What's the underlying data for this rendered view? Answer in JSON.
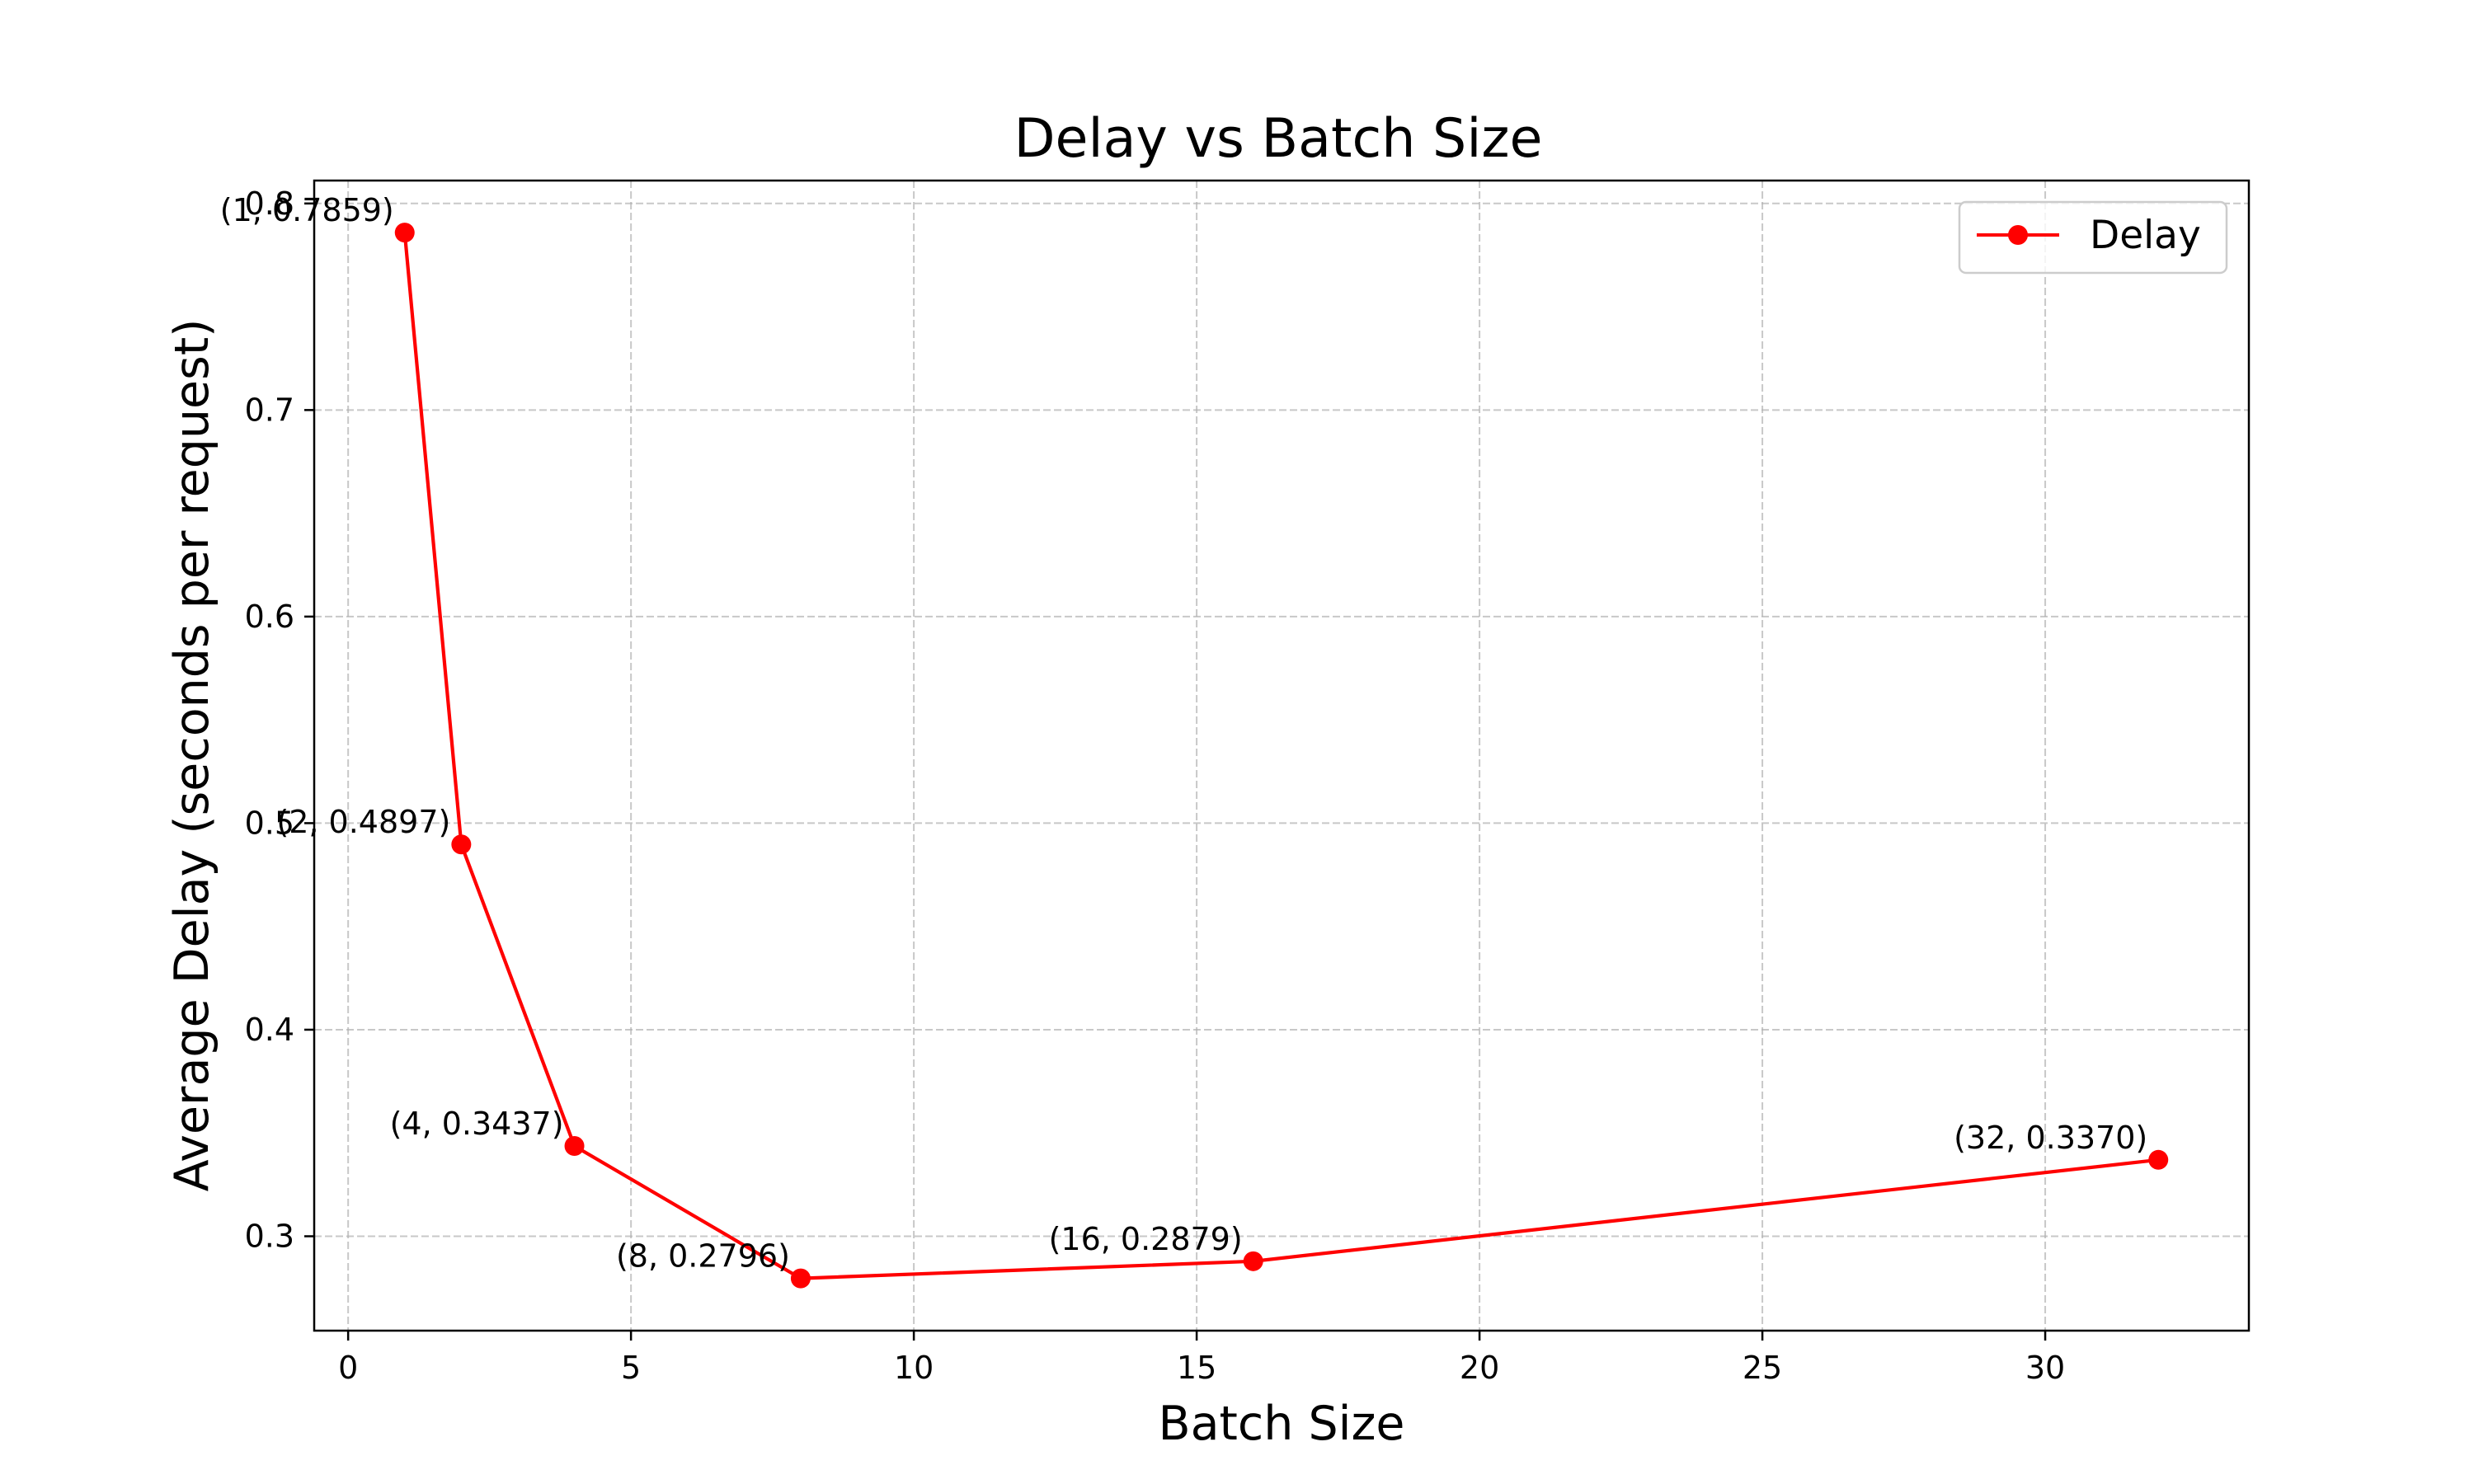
{
  "chart_data": {
    "type": "line",
    "title": "Delay vs Batch Size",
    "xlabel": "Batch Size",
    "ylabel": "Average Delay (seconds per request)",
    "xlim": [
      -0.6,
      33.6
    ],
    "ylim": [
      0.2543,
      0.8111
    ],
    "xticks": [
      0,
      5,
      10,
      15,
      20,
      25,
      30
    ],
    "yticks": [
      0.3,
      0.4,
      0.5,
      0.6,
      0.7,
      0.8
    ],
    "xtick_labels": [
      "0",
      "5",
      "10",
      "15",
      "20",
      "25",
      "30"
    ],
    "ytick_labels": [
      "0.3",
      "0.4",
      "0.5",
      "0.6",
      "0.7",
      "0.8"
    ],
    "grid": true,
    "legend_position": "top-right",
    "series": [
      {
        "name": "Delay",
        "color": "#ff0000",
        "marker": "circle",
        "x": [
          1,
          2,
          4,
          8,
          16,
          32
        ],
        "y": [
          0.7859,
          0.4897,
          0.3437,
          0.2796,
          0.2879,
          0.337
        ]
      }
    ],
    "annotations": [
      "(1, 0.7859)",
      "(2, 0.4897)",
      "(4, 0.3437)",
      "(8, 0.2796)",
      "(16, 0.2879)",
      "(32, 0.3370)"
    ]
  }
}
